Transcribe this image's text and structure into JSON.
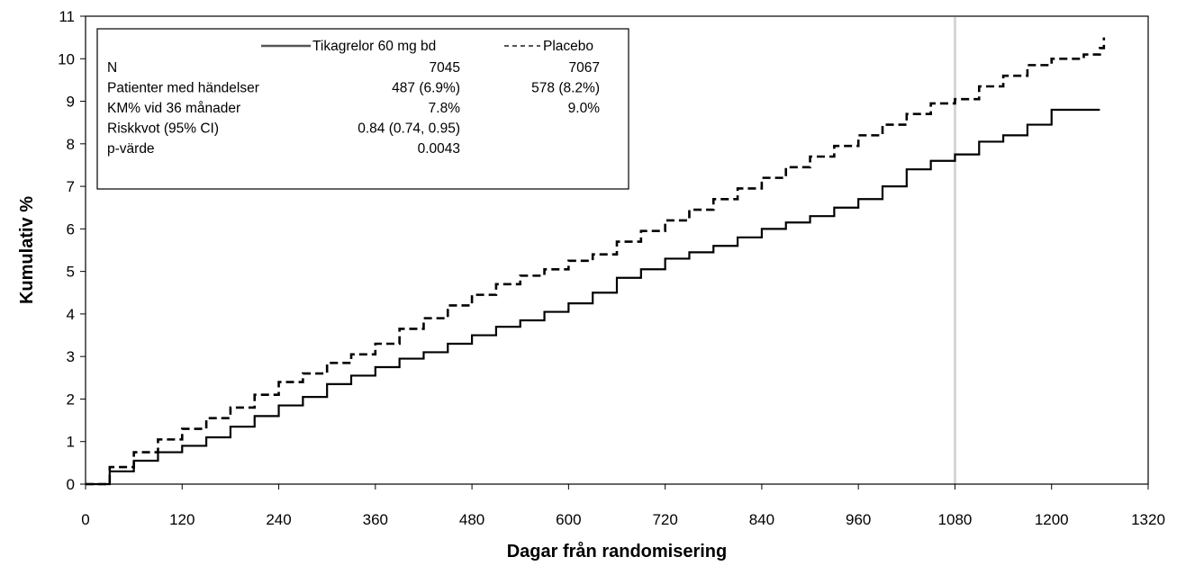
{
  "chart_data": {
    "type": "line",
    "xlabel": "Dagar från randomisering",
    "ylabel": "Kumulativ %",
    "xlim": [
      0,
      1320
    ],
    "ylim": [
      0,
      11
    ],
    "xticks": [
      0,
      120,
      240,
      360,
      480,
      600,
      720,
      840,
      960,
      1080,
      1200,
      1320
    ],
    "yticks": [
      0,
      1,
      2,
      3,
      4,
      5,
      6,
      7,
      8,
      9,
      10,
      11
    ],
    "reference_line_x": 1080,
    "grid": false,
    "legend_position": "top-left",
    "series": [
      {
        "name": "Tikagrelor 60 mg bd",
        "style": "solid",
        "color": "#000000",
        "x": [
          0,
          30,
          60,
          90,
          120,
          150,
          180,
          210,
          240,
          270,
          300,
          330,
          360,
          390,
          420,
          450,
          480,
          510,
          540,
          570,
          600,
          630,
          660,
          690,
          720,
          750,
          780,
          810,
          840,
          870,
          900,
          930,
          960,
          990,
          1020,
          1050,
          1080,
          1110,
          1140,
          1170,
          1200,
          1260
        ],
        "y": [
          0,
          0.3,
          0.55,
          0.75,
          0.9,
          1.1,
          1.35,
          1.6,
          1.85,
          2.05,
          2.35,
          2.55,
          2.75,
          2.95,
          3.1,
          3.3,
          3.5,
          3.7,
          3.85,
          4.05,
          4.25,
          4.5,
          4.85,
          5.05,
          5.3,
          5.45,
          5.6,
          5.8,
          6.0,
          6.15,
          6.3,
          6.5,
          6.7,
          7.0,
          7.4,
          7.6,
          7.75,
          8.05,
          8.2,
          8.45,
          8.8,
          8.8
        ]
      },
      {
        "name": "Placebo",
        "style": "dashed",
        "color": "#000000",
        "x": [
          0,
          30,
          60,
          90,
          120,
          150,
          180,
          210,
          240,
          270,
          300,
          330,
          360,
          390,
          420,
          450,
          480,
          510,
          540,
          570,
          600,
          630,
          660,
          690,
          720,
          750,
          780,
          810,
          840,
          870,
          900,
          930,
          960,
          990,
          1020,
          1050,
          1080,
          1110,
          1140,
          1170,
          1200,
          1240,
          1260,
          1265
        ],
        "y": [
          0,
          0.4,
          0.75,
          1.05,
          1.3,
          1.55,
          1.8,
          2.1,
          2.4,
          2.6,
          2.85,
          3.05,
          3.3,
          3.65,
          3.9,
          4.2,
          4.45,
          4.7,
          4.9,
          5.05,
          5.25,
          5.4,
          5.7,
          5.95,
          6.2,
          6.45,
          6.7,
          6.95,
          7.2,
          7.45,
          7.7,
          7.95,
          8.2,
          8.45,
          8.7,
          8.95,
          9.05,
          9.35,
          9.6,
          9.85,
          10.0,
          10.1,
          10.25,
          10.5
        ]
      }
    ],
    "legend_table": {
      "header": {
        "series1": "Tikagrelor 60 mg bd",
        "series2": "Placebo"
      },
      "rows": [
        {
          "label": "N",
          "v1": "7045",
          "v2": "7067"
        },
        {
          "label": "Patienter med händelser",
          "v1": "487 (6.9%)",
          "v2": "578 (8.2%)"
        },
        {
          "label": "KM% vid 36 månader",
          "v1": "7.8%",
          "v2": "9.0%"
        },
        {
          "label": "Riskkvot (95% CI)",
          "v1": "0.84 (0.74, 0.95)",
          "v2": ""
        },
        {
          "label": "p-värde",
          "v1": "0.0043",
          "v2": ""
        }
      ]
    }
  }
}
